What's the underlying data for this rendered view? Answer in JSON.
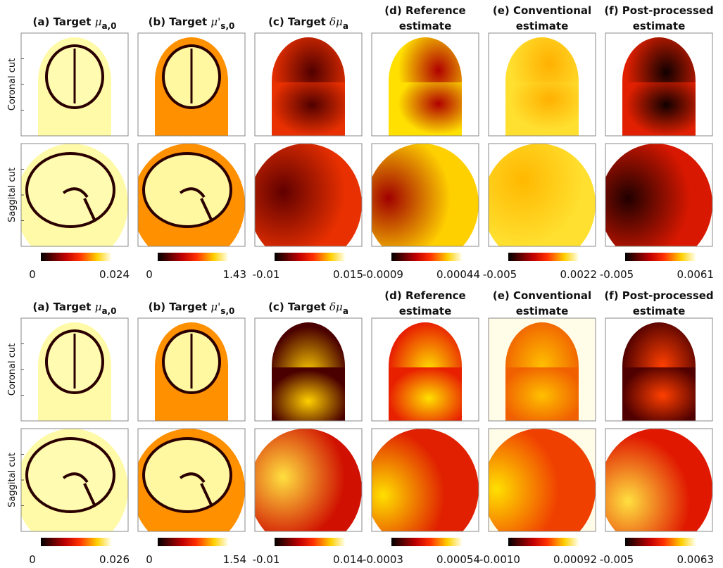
{
  "blocks": [
    {
      "titles": [
        {
          "text": "(a) Target ",
          "sym": "μ",
          "sub": "a,0"
        },
        {
          "text": "(b) Target ",
          "sym": "μ'",
          "sub": "s,0"
        },
        {
          "text": "(c) Target ",
          "sym": "δμ",
          "sub": "a"
        },
        {
          "lines": [
            "(d) Reference",
            "estimate"
          ]
        },
        {
          "lines": [
            "(e) Conventional",
            "estimate"
          ]
        },
        {
          "lines": [
            "(f) Post-processed",
            "estimate"
          ]
        }
      ],
      "row_labels": [
        "Coronal cut",
        "Saggital cut"
      ],
      "colorbars": [
        {
          "min": "0",
          "max": "0.024"
        },
        {
          "min": "0",
          "max": "1.43"
        },
        {
          "min": "-0.01",
          "max": "0.015"
        },
        {
          "min": "-0.0009",
          "max": "0.00044"
        },
        {
          "min": "-0.005",
          "max": "0.0022"
        },
        {
          "min": "-0.005",
          "max": "0.0061"
        }
      ]
    },
    {
      "titles": [
        {
          "text": "(a) Target ",
          "sym": "μ",
          "sub": "a,0"
        },
        {
          "text": "(b) Target ",
          "sym": "μ'",
          "sub": "s,0"
        },
        {
          "text": "(c) Target ",
          "sym": "δμ",
          "sub": "a"
        },
        {
          "lines": [
            "(d) Reference",
            "estimate"
          ]
        },
        {
          "lines": [
            "(e) Conventional",
            "estimate"
          ]
        },
        {
          "lines": [
            "(f) Post-processed",
            "estimate"
          ]
        }
      ],
      "row_labels": [
        "Coronal cut",
        "Saggital cut"
      ],
      "colorbars": [
        {
          "min": "0",
          "max": "0.026"
        },
        {
          "min": "0",
          "max": "1.54"
        },
        {
          "min": "-0.01",
          "max": "0.014"
        },
        {
          "min": "-0.0003",
          "max": "0.00054"
        },
        {
          "min": "-0.0010",
          "max": "0.00092"
        },
        {
          "min": "-0.005",
          "max": "0.0063"
        }
      ]
    }
  ]
}
